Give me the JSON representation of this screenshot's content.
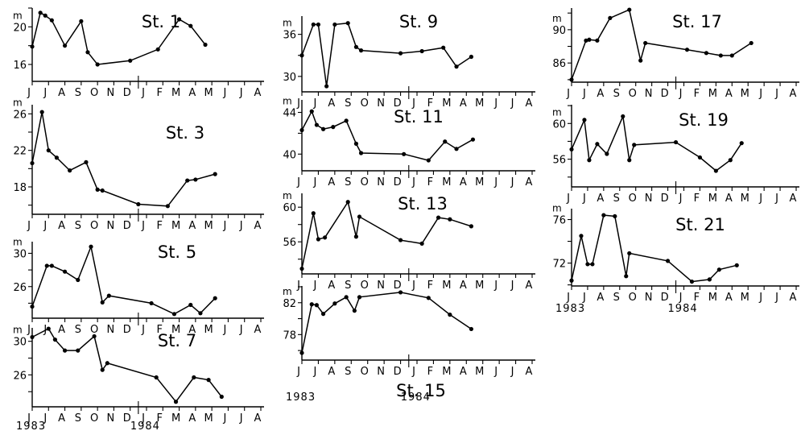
{
  "chart_data": [
    {
      "type": "line",
      "title": "St. 1",
      "ylabel": "m",
      "ylim": [
        14.2,
        22.0
      ],
      "yticks": [
        16,
        20
      ],
      "yticklabels": [
        "16",
        "20"
      ],
      "x_months": [
        "J",
        "J",
        "A",
        "S",
        "O",
        "N",
        "D",
        "J",
        "F",
        "M",
        "A",
        "M",
        "J",
        "J",
        "A"
      ],
      "year_labels": [
        "1983",
        "1984"
      ],
      "series": [
        {
          "x": [
            0,
            0.5,
            0.8,
            1.2,
            2,
            3,
            3.4,
            4,
            6,
            7.7,
            9,
            9.7,
            10.6
          ],
          "values": [
            17.9,
            21.5,
            21.2,
            20.7,
            18.0,
            20.6,
            17.3,
            16.0,
            16.4,
            17.6,
            20.8,
            20.1,
            18.1
          ]
        }
      ]
    },
    {
      "type": "line",
      "title": "St. 3",
      "ylabel": "m",
      "ylim": [
        15.0,
        27.0
      ],
      "yticks": [
        18,
        22,
        26
      ],
      "yticklabels": [
        "18",
        "22",
        "26"
      ],
      "x_months": [
        "J",
        "J",
        "A",
        "S",
        "O",
        "N",
        "D",
        "J",
        "F",
        "M",
        "A",
        "M",
        "J",
        "J",
        "A"
      ],
      "year_labels": [
        "1983",
        "1984"
      ],
      "series": [
        {
          "x": [
            0,
            0.6,
            1,
            1.5,
            2.3,
            3.3,
            4,
            4.3,
            6.5,
            8.3,
            9.5,
            10,
            11.2
          ],
          "values": [
            20.6,
            26.2,
            22.0,
            21.2,
            19.8,
            20.7,
            17.7,
            17.6,
            16.1,
            15.9,
            18.7,
            18.8,
            19.4
          ]
        }
      ]
    },
    {
      "type": "line",
      "title": "St. 5",
      "ylabel": "m",
      "ylim": [
        22.2,
        31.4
      ],
      "yticks": [
        26,
        30
      ],
      "yticklabels": [
        "26",
        "30"
      ],
      "x_months": [
        "J",
        "J",
        "A",
        "S",
        "O",
        "N",
        "D",
        "J",
        "F",
        "M",
        "A",
        "M",
        "J",
        "J",
        "A"
      ],
      "year_labels": [
        "1983",
        "1984"
      ],
      "series": [
        {
          "x": [
            0,
            0.9,
            1.2,
            2,
            2.8,
            3.6,
            4.3,
            4.7,
            7.3,
            8.7,
            9.7,
            10.3,
            11.2
          ],
          "values": [
            23.6,
            28.5,
            28.5,
            27.8,
            26.8,
            30.8,
            24.1,
            24.9,
            24.0,
            22.7,
            23.8,
            22.8,
            24.6
          ]
        }
      ]
    },
    {
      "type": "line",
      "title": "St. 7",
      "ylabel": "m",
      "ylim": [
        22.2,
        31.6
      ],
      "yticks": [
        26,
        30
      ],
      "yticklabels": [
        "26",
        "30"
      ],
      "x_months": [
        "J",
        "J",
        "A",
        "S",
        "O",
        "N",
        "D",
        "J",
        "F",
        "M",
        "A",
        "M",
        "J",
        "J",
        "A"
      ],
      "year_labels": [
        "1983",
        "1984"
      ],
      "series": [
        {
          "x": [
            0,
            1,
            1.4,
            2,
            2.8,
            3.8,
            4.3,
            4.6,
            7.6,
            8.8,
            9.9,
            10.8,
            11.6
          ],
          "values": [
            30.5,
            31.5,
            30.2,
            28.9,
            28.9,
            30.6,
            26.6,
            27.4,
            25.7,
            22.8,
            25.7,
            25.4,
            23.4
          ]
        }
      ]
    },
    {
      "type": "line",
      "title": "St. 9",
      "ylabel": "m",
      "ylim": [
        27.8,
        38.6
      ],
      "yticks": [
        30,
        36
      ],
      "yticklabels": [
        "30",
        "36"
      ],
      "x_months": [
        "J",
        "J",
        "A",
        "S",
        "O",
        "N",
        "D",
        "J",
        "F",
        "M",
        "A",
        "M",
        "J",
        "J",
        "A"
      ],
      "year_labels": [
        "1983",
        "1984"
      ],
      "series": [
        {
          "x": [
            0,
            0.7,
            1,
            1.5,
            2,
            2.8,
            3.3,
            3.6,
            6,
            7.3,
            8.6,
            9.4,
            10.3
          ],
          "values": [
            33.0,
            37.4,
            37.4,
            28.6,
            37.4,
            37.6,
            34.2,
            33.7,
            33.3,
            33.6,
            34.1,
            31.4,
            32.8
          ]
        }
      ]
    },
    {
      "type": "line",
      "title": "St. 11",
      "ylabel": "m",
      "ylim": [
        38.4,
        45.2
      ],
      "yticks": [
        40,
        44
      ],
      "yticklabels": [
        "40",
        "44"
      ],
      "x_months": [
        "J",
        "J",
        "A",
        "S",
        "O",
        "N",
        "D",
        "J",
        "F",
        "M",
        "A",
        "M",
        "J",
        "J",
        "A"
      ],
      "year_labels": [
        "1983",
        "1984"
      ],
      "series": [
        {
          "x": [
            0,
            0.6,
            0.9,
            1.3,
            1.9,
            2.7,
            3.3,
            3.6,
            6.2,
            7.7,
            8.7,
            9.4,
            10.4
          ],
          "values": [
            42.3,
            44.1,
            42.8,
            42.4,
            42.6,
            43.2,
            41.0,
            40.1,
            40.0,
            39.4,
            41.2,
            40.5,
            41.4
          ]
        }
      ]
    },
    {
      "type": "line",
      "title": "St. 13",
      "ylabel": "m",
      "ylim": [
        52.3,
        61.6
      ],
      "yticks": [
        56,
        60
      ],
      "yticklabels": [
        "56",
        "60"
      ],
      "x_months": [
        "J",
        "J",
        "A",
        "S",
        "O",
        "N",
        "D",
        "J",
        "F",
        "M",
        "A",
        "M",
        "J",
        "J",
        "A"
      ],
      "year_labels": [
        "1983",
        "1984"
      ],
      "series": [
        {
          "x": [
            0,
            0.7,
            1,
            1.4,
            2.8,
            3.3,
            3.5,
            6,
            7.3,
            8.3,
            9,
            10.3
          ],
          "values": [
            52.9,
            59.3,
            56.3,
            56.5,
            60.6,
            56.6,
            58.9,
            56.2,
            55.8,
            58.8,
            58.6,
            57.8
          ]
        }
      ]
    },
    {
      "type": "line",
      "title": "St. 15",
      "ylabel": "m",
      "ylim": [
        74.8,
        84.1
      ],
      "yticks": [
        78,
        82
      ],
      "yticklabels": [
        "78",
        "82"
      ],
      "x_months": [
        "J",
        "J",
        "A",
        "S",
        "O",
        "N",
        "D",
        "J",
        "F",
        "M",
        "A",
        "M",
        "J",
        "J",
        "A"
      ],
      "year_labels": [
        "1983",
        "1984"
      ],
      "series": [
        {
          "x": [
            0,
            0.6,
            0.9,
            1.3,
            2,
            2.7,
            3.2,
            3.5,
            6,
            7.7,
            9,
            10.3
          ],
          "values": [
            75.7,
            81.8,
            81.7,
            80.6,
            81.9,
            82.7,
            81.0,
            82.7,
            83.3,
            82.6,
            80.5,
            78.7
          ]
        }
      ]
    },
    {
      "type": "line",
      "title": "St. 17",
      "ylabel": "m",
      "ylim": [
        83.7,
        92.6
      ],
      "yticks": [
        86,
        90
      ],
      "yticklabels": [
        "86",
        "90"
      ],
      "x_months": [
        "J",
        "J",
        "A",
        "S",
        "O",
        "N",
        "D",
        "J",
        "F",
        "M",
        "A",
        "M",
        "J",
        "J",
        "A"
      ],
      "year_labels": [],
      "series": [
        {
          "x": [
            0,
            0.9,
            1.1,
            1.6,
            2.4,
            3.6,
            4.3,
            4.6,
            7.2,
            8.4,
            9.3,
            10,
            11.2
          ],
          "values": [
            84.0,
            88.7,
            88.8,
            88.7,
            91.4,
            92.4,
            86.3,
            88.4,
            87.6,
            87.2,
            86.9,
            86.9,
            88.4
          ]
        }
      ]
    },
    {
      "type": "line",
      "title": "St. 19",
      "ylabel": "m",
      "ylim": [
        52.9,
        62.1
      ],
      "yticks": [
        56,
        60
      ],
      "yticklabels": [
        "56",
        "60"
      ],
      "x_months": [
        "J",
        "J",
        "A",
        "S",
        "O",
        "N",
        "D",
        "J",
        "F",
        "M",
        "A",
        "M",
        "J",
        "J",
        "A"
      ],
      "year_labels": [],
      "series": [
        {
          "x": [
            0,
            0.8,
            1.1,
            1.6,
            2.2,
            3.2,
            3.6,
            3.9,
            6.5,
            8,
            9,
            9.9,
            10.6
          ],
          "values": [
            57.1,
            60.4,
            55.9,
            57.7,
            56.6,
            60.8,
            55.9,
            57.6,
            57.9,
            56.2,
            54.7,
            55.9,
            57.8
          ]
        }
      ]
    },
    {
      "type": "line",
      "title": "St. 21",
      "ylabel": "m",
      "ylim": [
        69.9,
        77.0
      ],
      "yticks": [
        72,
        76
      ],
      "yticklabels": [
        "72",
        "76"
      ],
      "x_months": [
        "J",
        "J",
        "A",
        "S",
        "O",
        "N",
        "D",
        "J",
        "F",
        "M",
        "A",
        "M",
        "J",
        "J",
        "A"
      ],
      "year_labels": [
        "1983",
        "1984"
      ],
      "series": [
        {
          "x": [
            0,
            0.6,
            1,
            1.3,
            2,
            2.7,
            3.4,
            3.6,
            6,
            7.5,
            8.6,
            9.2,
            10.3
          ],
          "values": [
            70.4,
            74.5,
            71.9,
            71.9,
            76.4,
            76.3,
            70.8,
            72.9,
            72.2,
            70.3,
            70.5,
            71.4,
            71.8
          ]
        }
      ]
    }
  ]
}
